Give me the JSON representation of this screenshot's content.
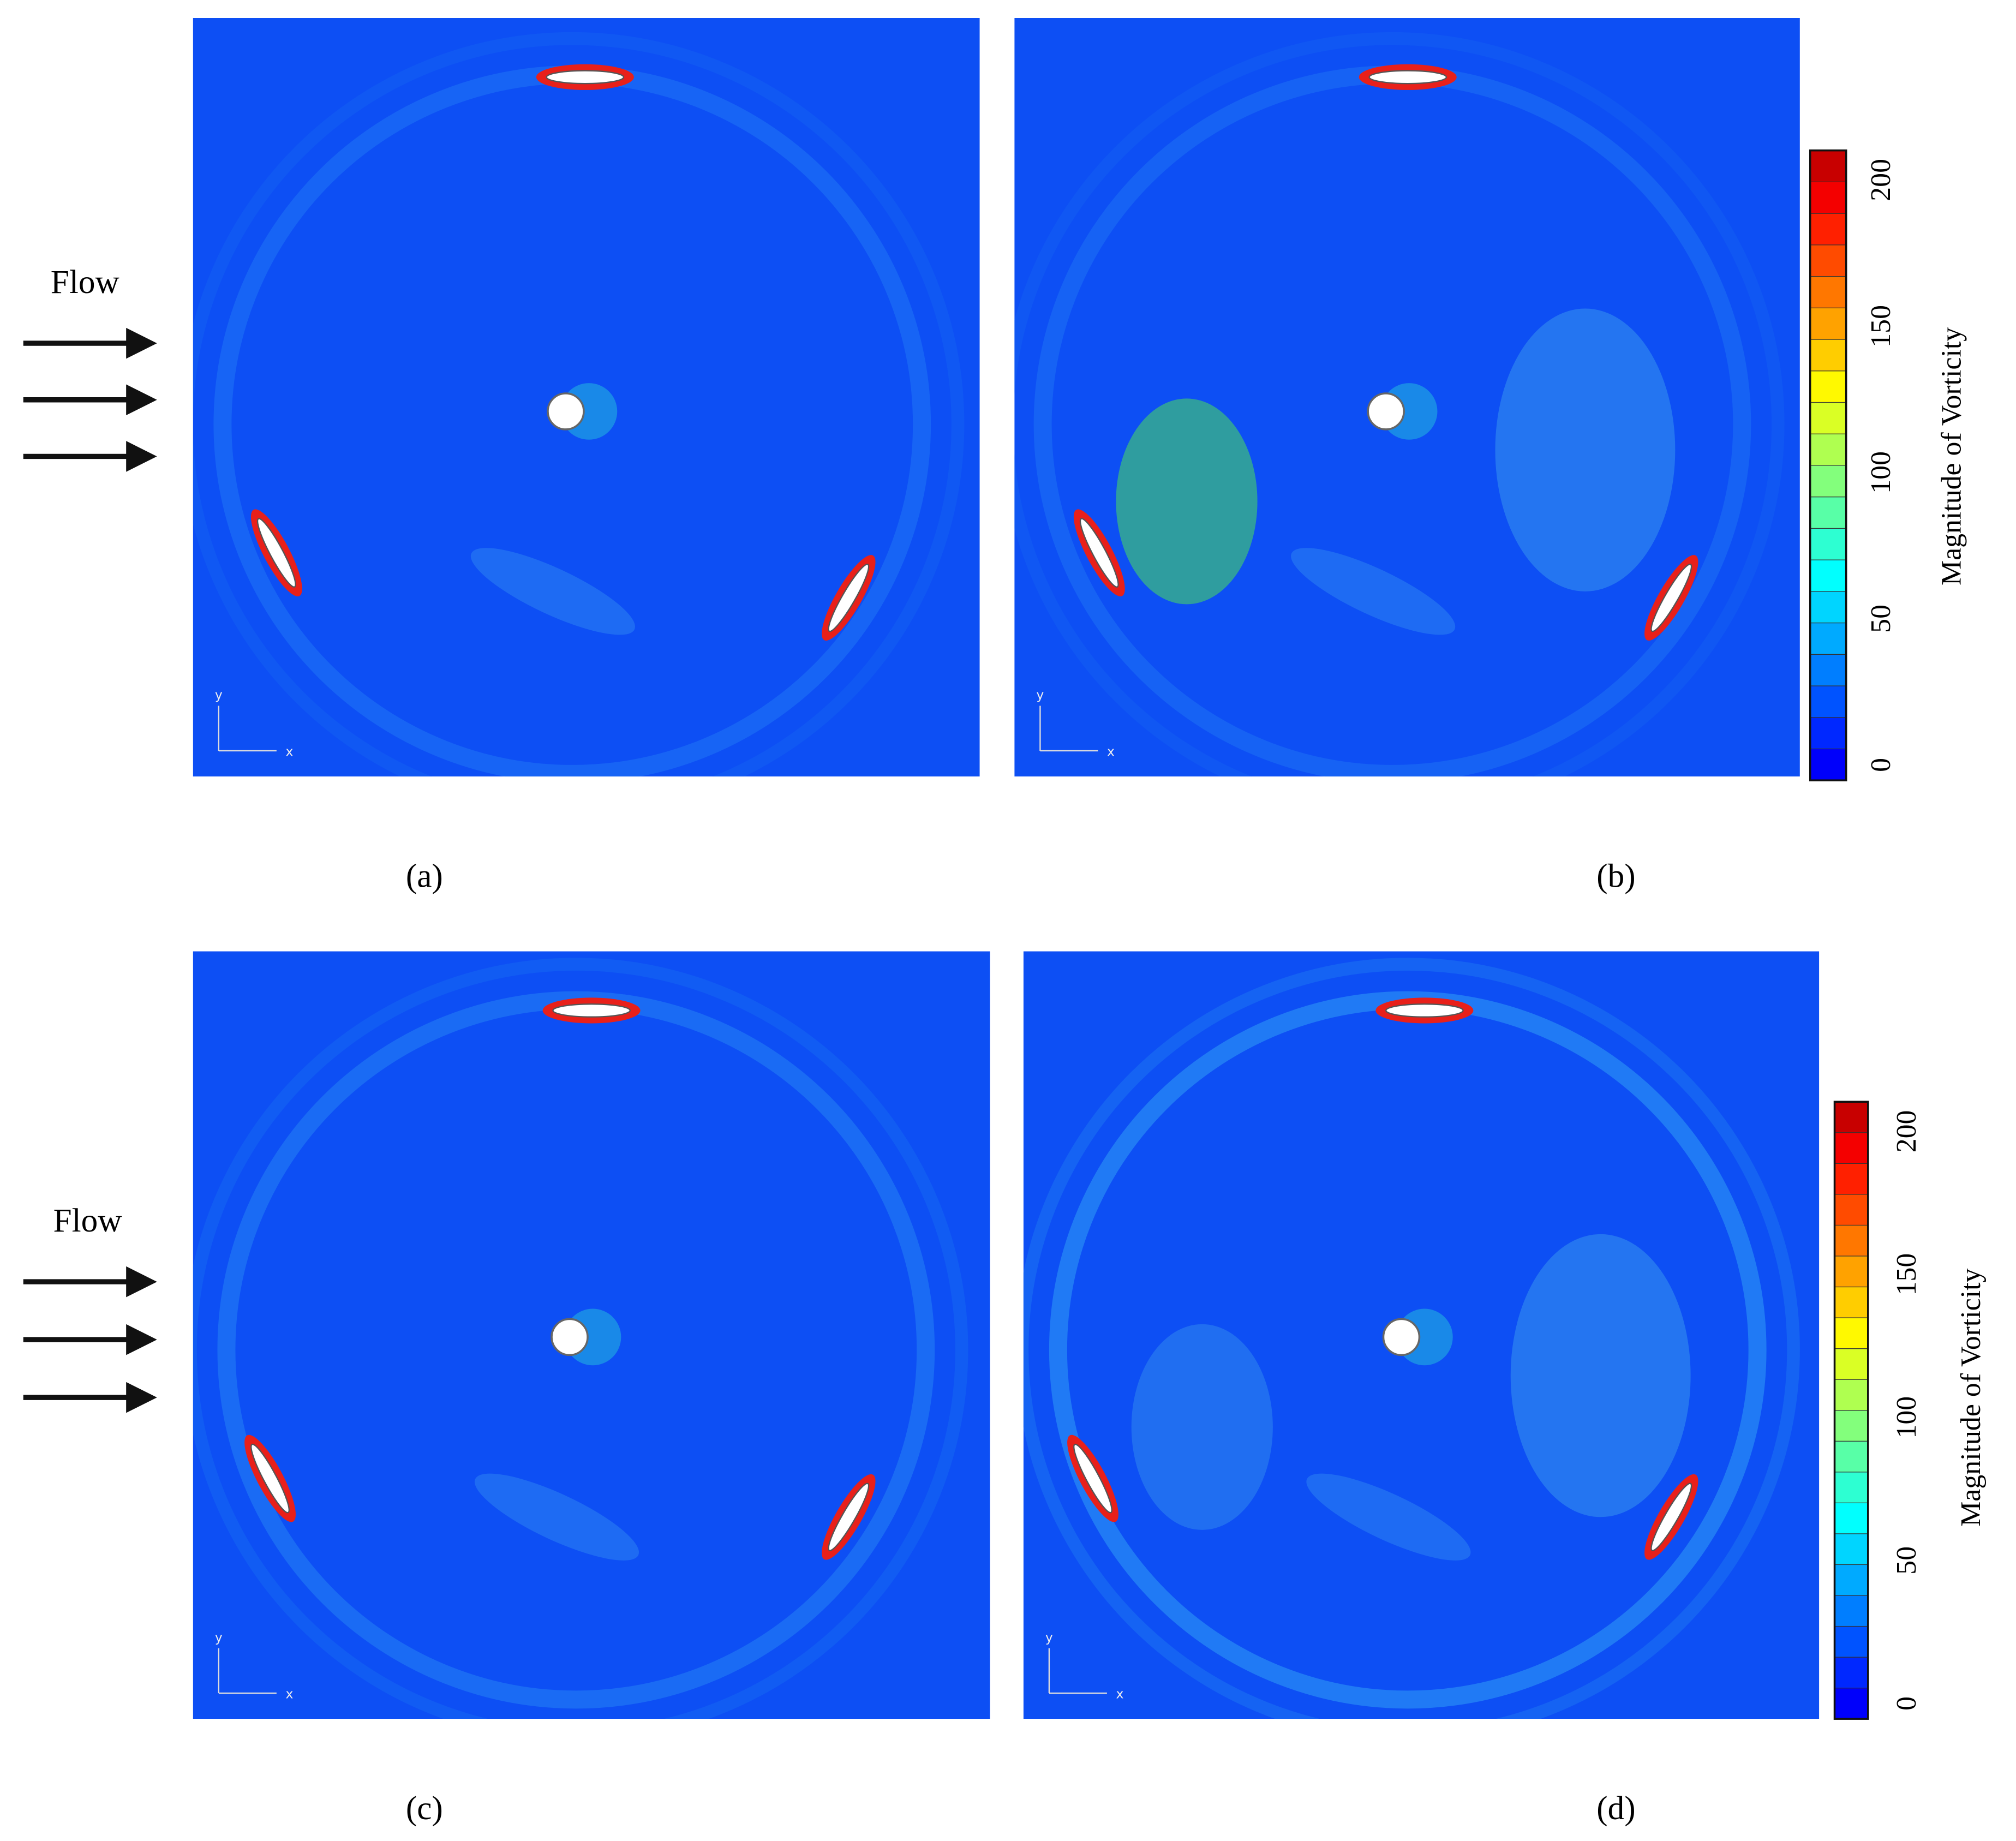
{
  "figure": {
    "flow_annotations": [
      "Flow",
      "Flow"
    ],
    "panels": [
      {
        "label": "(a)",
        "axes": [
          "y",
          "x"
        ]
      },
      {
        "label": "(b)",
        "axes": [
          "y",
          "x"
        ]
      },
      {
        "label": "(c)",
        "axes": [
          "y",
          "x"
        ]
      },
      {
        "label": "(d)",
        "axes": [
          "y",
          "x"
        ]
      }
    ],
    "colorbars": [
      {
        "title": "Magnitude of Vorticity",
        "ticks": [
          0,
          50,
          100,
          150,
          200
        ]
      },
      {
        "title": "Magnitude of Vorticity",
        "ticks": [
          0,
          50,
          100,
          150,
          200
        ]
      }
    ]
  }
}
